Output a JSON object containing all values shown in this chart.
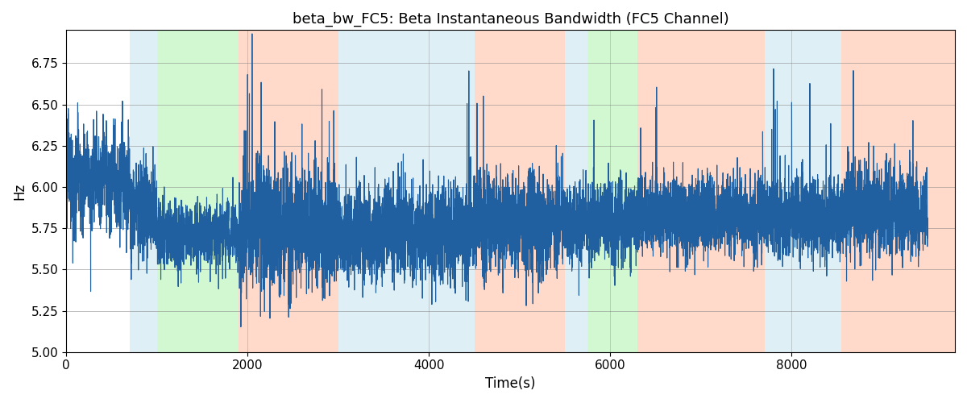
{
  "title": "beta_bw_FC5: Beta Instantaneous Bandwidth (FC5 Channel)",
  "xlabel": "Time(s)",
  "ylabel": "Hz",
  "ylim": [
    5.0,
    6.95
  ],
  "xlim": [
    0,
    9800
  ],
  "line_color": "#2060a0",
  "line_width": 0.8,
  "background_color": "#ffffff",
  "regions": [
    {
      "start": 700,
      "end": 1000,
      "color": "#add8e6",
      "alpha": 0.4
    },
    {
      "start": 1000,
      "end": 1900,
      "color": "#90ee90",
      "alpha": 0.4
    },
    {
      "start": 1900,
      "end": 3000,
      "color": "#ffa07a",
      "alpha": 0.4
    },
    {
      "start": 3000,
      "end": 4500,
      "color": "#add8e6",
      "alpha": 0.4
    },
    {
      "start": 4500,
      "end": 5500,
      "color": "#ffa07a",
      "alpha": 0.4
    },
    {
      "start": 5500,
      "end": 5750,
      "color": "#add8e6",
      "alpha": 0.4
    },
    {
      "start": 5750,
      "end": 6300,
      "color": "#90ee90",
      "alpha": 0.4
    },
    {
      "start": 6300,
      "end": 7700,
      "color": "#ffa07a",
      "alpha": 0.4
    },
    {
      "start": 7700,
      "end": 8550,
      "color": "#add8e6",
      "alpha": 0.4
    },
    {
      "start": 8550,
      "end": 9800,
      "color": "#ffa07a",
      "alpha": 0.4
    }
  ],
  "seed": 42,
  "n_samples": 9500,
  "base_mean": 5.85,
  "noise_std": 0.12,
  "title_fontsize": 13,
  "tick_fontsize": 11,
  "label_fontsize": 12
}
